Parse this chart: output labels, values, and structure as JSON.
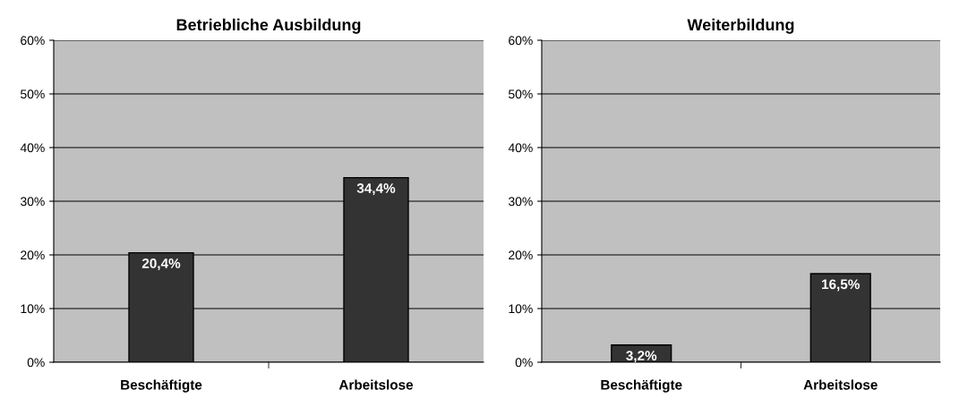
{
  "chart_data": [
    {
      "type": "bar",
      "title": "Betriebliche Ausbildung",
      "categories": [
        "Beschäftigte",
        "Arbeitslose"
      ],
      "values": [
        20.4,
        34.4
      ],
      "value_labels": [
        "20,4%",
        "34,4%"
      ],
      "color": "#333333",
      "ylim": [
        0,
        60
      ],
      "yticks": [
        {
          "value": 0,
          "label": "0%"
        },
        {
          "value": 10,
          "label": "10%"
        },
        {
          "value": 20,
          "label": "20%"
        },
        {
          "value": 30,
          "label": "30%"
        },
        {
          "value": 40,
          "label": "40%"
        },
        {
          "value": 50,
          "label": "50%"
        },
        {
          "value": 60,
          "label": "60%"
        }
      ],
      "grid": "y"
    },
    {
      "type": "bar",
      "title": "Weiterbildung",
      "categories": [
        "Beschäftigte",
        "Arbeitslose"
      ],
      "values": [
        3.2,
        16.5
      ],
      "value_labels": [
        "3,2%",
        "16,5%"
      ],
      "color": "#333333",
      "ylim": [
        0,
        60
      ],
      "yticks": [
        {
          "value": 0,
          "label": "0%"
        },
        {
          "value": 10,
          "label": "10%"
        },
        {
          "value": 20,
          "label": "20%"
        },
        {
          "value": 30,
          "label": "30%"
        },
        {
          "value": 40,
          "label": "40%"
        },
        {
          "value": 50,
          "label": "50%"
        },
        {
          "value": 60,
          "label": "60%"
        }
      ],
      "grid": "y"
    }
  ]
}
